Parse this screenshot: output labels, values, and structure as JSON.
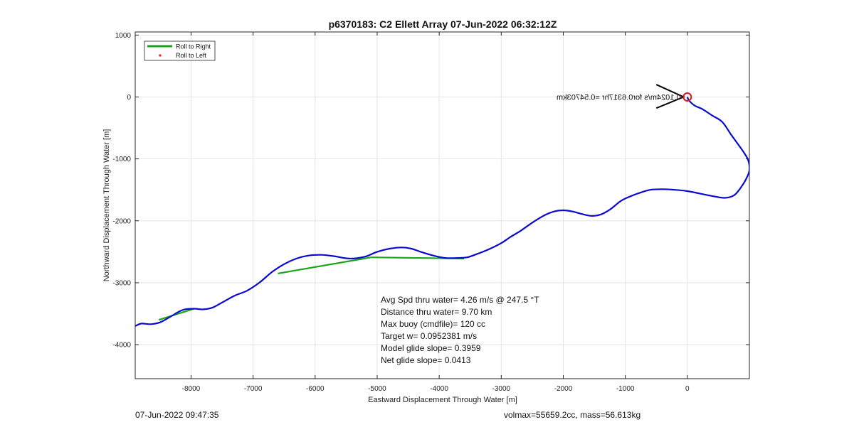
{
  "chart_data": {
    "type": "line",
    "title": "p6370183: C2 Ellett Array 07-Jun-2022 06:32:12Z",
    "xlabel": "Eastward Displacement Through Water [m]",
    "ylabel": "Northward Displacement Through Water [m]",
    "xlim": [
      -8900,
      1000
    ],
    "ylim": [
      -4550,
      1050
    ],
    "xticks": [
      -8000,
      -7000,
      -6000,
      -5000,
      -4000,
      -3000,
      -2000,
      -1000,
      0
    ],
    "yticks": [
      1000,
      0,
      -1000,
      -2000,
      -3000,
      -4000
    ],
    "grid": true,
    "legend": {
      "placement": "top-left",
      "entries": [
        {
          "label": "Roll to Right",
          "color": "#1aa51a",
          "style": "line"
        },
        {
          "label": "Roll to Left",
          "color": "#e31a1c",
          "style": "dot"
        }
      ]
    },
    "series": [
      {
        "name": "track",
        "color": "#0a0ad0",
        "x": [
          -8900,
          -8800,
          -8650,
          -8500,
          -8350,
          -8200,
          -8100,
          -7950,
          -7800,
          -7650,
          -7500,
          -7300,
          -7100,
          -6900,
          -6700,
          -6500,
          -6300,
          -6100,
          -5900,
          -5700,
          -5450,
          -5200,
          -5000,
          -4800,
          -4600,
          -4450,
          -4300,
          -4100,
          -3900,
          -3700,
          -3550,
          -3400,
          -3200,
          -3000,
          -2850,
          -2700,
          -2500,
          -2300,
          -2150,
          -2000,
          -1850,
          -1700,
          -1550,
          -1400,
          -1250,
          -1100,
          -1000,
          -800,
          -600,
          -400,
          -200,
          0,
          200,
          400,
          600,
          750,
          850,
          950,
          1000,
          980,
          900,
          800,
          700,
          560,
          400,
          250,
          120,
          30,
          0
        ],
        "y": [
          -3700,
          -3660,
          -3670,
          -3640,
          -3560,
          -3470,
          -3430,
          -3420,
          -3430,
          -3400,
          -3320,
          -3210,
          -3130,
          -3000,
          -2830,
          -2700,
          -2610,
          -2560,
          -2550,
          -2570,
          -2610,
          -2580,
          -2500,
          -2450,
          -2430,
          -2450,
          -2500,
          -2560,
          -2600,
          -2600,
          -2590,
          -2540,
          -2460,
          -2360,
          -2260,
          -2170,
          -2030,
          -1910,
          -1850,
          -1830,
          -1850,
          -1890,
          -1920,
          -1900,
          -1820,
          -1700,
          -1640,
          -1560,
          -1500,
          -1490,
          -1500,
          -1520,
          -1560,
          -1600,
          -1630,
          -1590,
          -1480,
          -1320,
          -1180,
          -1020,
          -880,
          -740,
          -600,
          -400,
          -300,
          -200,
          -140,
          -60,
          0
        ]
      },
      {
        "name": "Roll to Right",
        "color": "#1aa51a",
        "segments": [
          {
            "x": [
              -8520,
              -7950
            ],
            "y": [
              -3600,
              -3420
            ]
          },
          {
            "x": [
              -6600,
              -5100
            ],
            "y": [
              -2850,
              -2590
            ]
          },
          {
            "x": [
              -5100,
              -3600
            ],
            "y": [
              -2590,
              -2610
            ]
          }
        ]
      }
    ],
    "surface_marker": {
      "x": 0,
      "y": 0,
      "color": "#d41a1a"
    },
    "current_label": "0.1024m/s for0.6317hr =0.54703km",
    "arrow": {
      "from": [
        -500,
        -180
      ],
      "tip": [
        -60,
        0
      ],
      "to": [
        -500,
        200
      ]
    },
    "annotations": [
      "Avg Spd thru water=  4.26 m/s @ 247.5 °T",
      "Distance thru water=  9.70 km",
      "Max buoy (cmdfile)= 120 cc",
      "Target w= 0.0952381 m/s",
      "Model glide slope= 0.3959",
      "Net glide slope= 0.0413"
    ]
  },
  "footer": {
    "timestamp": "07-Jun-2022 09:47:35",
    "volmax_mass": "volmax=55659.2cc, mass=56.613kg"
  }
}
